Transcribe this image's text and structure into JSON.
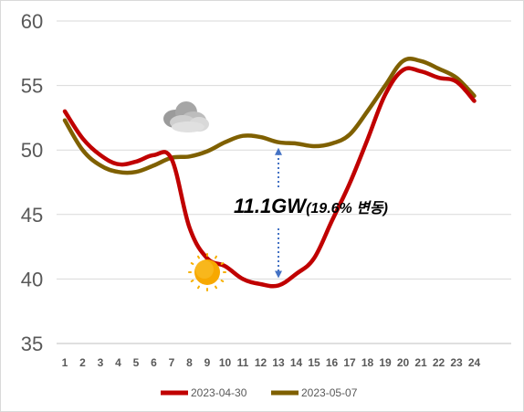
{
  "chart_data": {
    "type": "line",
    "title": "",
    "xlabel": "",
    "ylabel": "",
    "x": [
      1,
      2,
      3,
      4,
      5,
      6,
      7,
      8,
      9,
      10,
      11,
      12,
      13,
      14,
      15,
      16,
      17,
      18,
      19,
      20,
      21,
      22,
      23,
      24
    ],
    "x_tick_labels": [
      "1",
      "2",
      "3",
      "4",
      "5",
      "6",
      "7",
      "8",
      "9",
      "10",
      "11",
      "12",
      "13",
      "14",
      "15",
      "16",
      "17",
      "18",
      "19",
      "20",
      "21",
      "22",
      "23",
      "24"
    ],
    "ylim": [
      35,
      60
    ],
    "y_ticks": [
      35,
      40,
      45,
      50,
      55,
      60
    ],
    "y_tick_labels": [
      "35",
      "40",
      "45",
      "50",
      "55",
      "60"
    ],
    "grid": "horizontal",
    "legend_position": "bottom",
    "series": [
      {
        "name": "2023-04-30",
        "color": "#c00000",
        "values": [
          53.0,
          50.9,
          49.6,
          48.9,
          49.1,
          49.6,
          49.3,
          44.0,
          41.6,
          41.0,
          40.0,
          39.6,
          39.5,
          40.4,
          41.6,
          44.5,
          47.4,
          50.8,
          54.3,
          56.2,
          56.1,
          55.6,
          55.3,
          53.8
        ]
      },
      {
        "name": "2023-05-07",
        "color": "#7f6000",
        "values": [
          52.3,
          50.0,
          48.8,
          48.3,
          48.3,
          48.8,
          49.4,
          49.5,
          49.9,
          50.6,
          51.1,
          51.0,
          50.6,
          50.5,
          50.3,
          50.5,
          51.2,
          53.0,
          55.0,
          56.9,
          56.9,
          56.3,
          55.6,
          54.2
        ]
      }
    ],
    "annotations": [
      {
        "text_main": "11.1GW",
        "text_sub": "(19.6% 변동)",
        "x": 13
      }
    ]
  },
  "icons": {
    "cloud": "cloud-icon",
    "sun": "sun-icon"
  },
  "colors": {
    "grid": "#d9d9d9",
    "arrow": "#4472c4",
    "sun": "#f6a800"
  }
}
